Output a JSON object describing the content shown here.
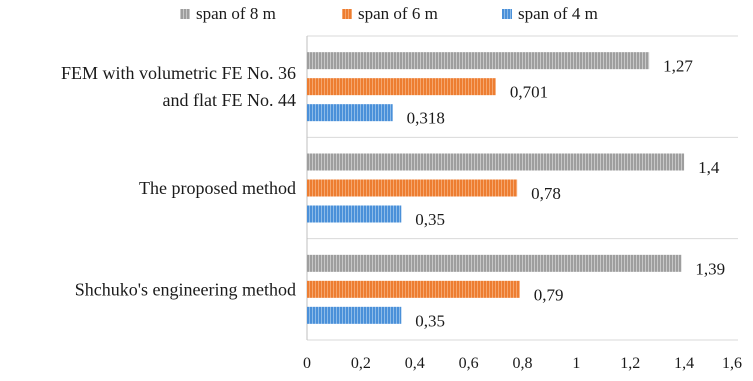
{
  "chart_data": {
    "type": "bar",
    "orientation": "horizontal",
    "title": "",
    "xlabel": "",
    "ylabel": "",
    "categories": [
      [
        "FEM with volumetric FE No. 36",
        "and flat FE No. 44"
      ],
      [
        "The proposed method"
      ],
      [
        "Shchuko's engineering method"
      ]
    ],
    "series": [
      {
        "name": "span of 8 m",
        "color": "#9e9e9e",
        "values": [
          1.27,
          1.4,
          1.39
        ],
        "labels": [
          "1,27",
          "1,4",
          "1,39"
        ]
      },
      {
        "name": "span of 6 m",
        "color": "#ed7d31",
        "values": [
          0.701,
          0.78,
          0.79
        ],
        "labels": [
          "0,701",
          "0,78",
          "0,79"
        ]
      },
      {
        "name": "span of 4 m",
        "color": "#4a90d9",
        "values": [
          0.318,
          0.35,
          0.35
        ],
        "labels": [
          "0,318",
          "0,35",
          "0,35"
        ]
      }
    ],
    "xlim": [
      0,
      1.6
    ],
    "xticks": [
      0,
      0.2,
      0.4,
      0.6,
      0.8,
      1,
      1.2,
      1.4,
      1.6
    ],
    "xtick_labels": [
      "0",
      "0,2",
      "0,4",
      "0,6",
      "0,8",
      "1",
      "1,2",
      "1,4",
      "1,6"
    ],
    "grid": false,
    "legend_position": "top",
    "bar_style": "vertical-hatch"
  }
}
